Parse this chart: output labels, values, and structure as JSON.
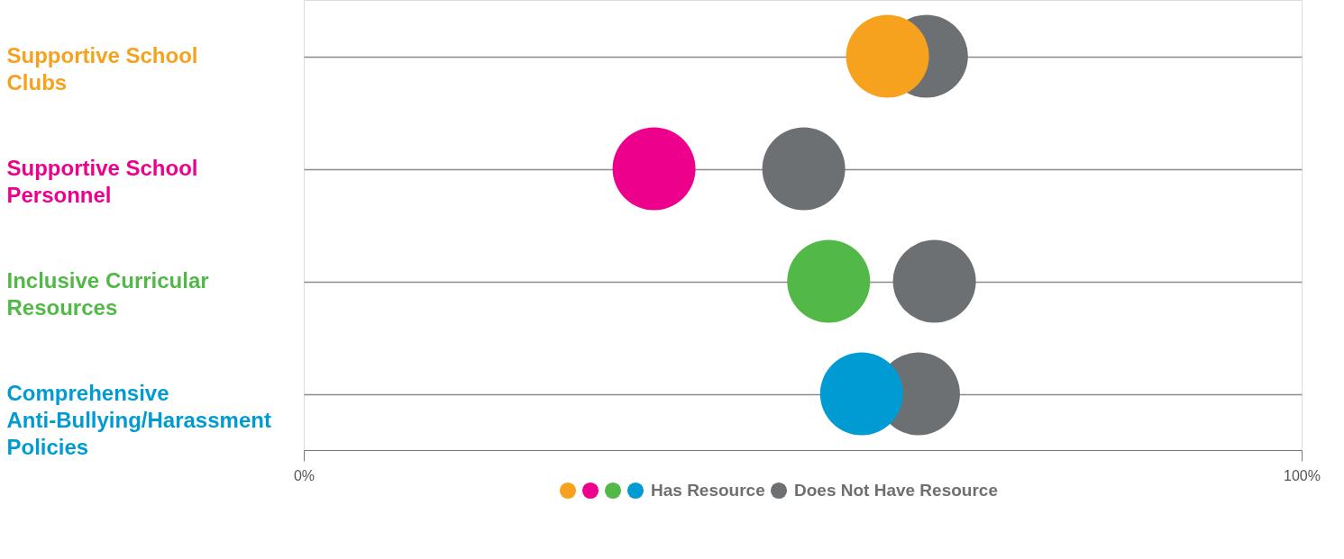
{
  "chart_data": {
    "type": "scatter",
    "orientation": "horizontal",
    "categories": [
      "Supportive School Clubs",
      "Supportive School Personnel",
      "Inclusive Curricular Resources",
      "Comprehensive Anti-Bullying/Harassment Policies"
    ],
    "series": [
      {
        "name": "Has Resource",
        "colors": [
          "#f7a21e",
          "#ec008c",
          "#52b848",
          "#009bd2"
        ],
        "values": [
          58.5,
          35.1,
          52.6,
          55.9
        ]
      },
      {
        "name": "Does Not Have Resource",
        "color": "#6d7073",
        "values": [
          62.4,
          50.1,
          63.2,
          61.6
        ]
      }
    ],
    "xlim": [
      0,
      100
    ],
    "xticks": [
      {
        "value": 0,
        "label": "0%"
      },
      {
        "value": 100,
        "label": "100%"
      }
    ],
    "grid": "y",
    "legend": "bottom"
  }
}
